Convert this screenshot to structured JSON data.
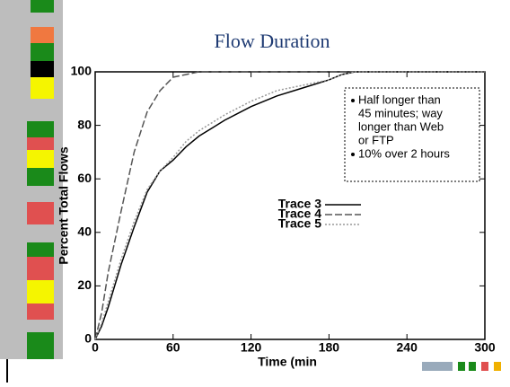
{
  "chart_data": {
    "type": "line",
    "title": "Flow Duration",
    "x_label": "Time (min",
    "y_label": "Percent Total Flows",
    "xlim": [
      0,
      300
    ],
    "xticks": [
      0,
      60,
      120,
      180,
      240,
      300
    ],
    "ylim": [
      0,
      100
    ],
    "yticks": [
      0,
      20,
      40,
      60,
      80,
      100
    ],
    "series": [
      {
        "name": "Trace 3",
        "color": "#000000",
        "dash": "solid",
        "x": [
          0,
          5,
          10,
          20,
          30,
          40,
          50,
          60,
          70,
          80,
          90,
          100,
          120,
          140,
          160,
          180,
          190,
          200,
          300
        ],
        "values": [
          0,
          5,
          12,
          28,
          42,
          55,
          63,
          67,
          72,
          76,
          79,
          82,
          87,
          91,
          94,
          97,
          99,
          100,
          100
        ]
      },
      {
        "name": "Trace 4",
        "color": "#555555",
        "dash": "dashed",
        "x": [
          0,
          5,
          10,
          20,
          30,
          40,
          50,
          60,
          70,
          80,
          100,
          120,
          180,
          300
        ],
        "values": [
          0,
          10,
          25,
          48,
          70,
          85,
          93,
          98,
          99,
          100,
          100,
          100,
          100,
          100
        ]
      },
      {
        "name": "Trace 5",
        "color": "#999999",
        "dash": "dotted",
        "x": [
          0,
          5,
          10,
          20,
          30,
          40,
          50,
          60,
          70,
          80,
          90,
          100,
          120,
          140,
          160,
          180,
          190,
          200,
          300
        ],
        "values": [
          0,
          6,
          14,
          30,
          44,
          56,
          63,
          68,
          74,
          78,
          81,
          84,
          89,
          93,
          95,
          97,
          99,
          100,
          100
        ]
      }
    ],
    "annotations": [
      [
        "Half longer than",
        "45 minutes; way",
        "longer than Web",
        "or FTP"
      ],
      [
        "10% over 2 hours"
      ]
    ]
  }
}
